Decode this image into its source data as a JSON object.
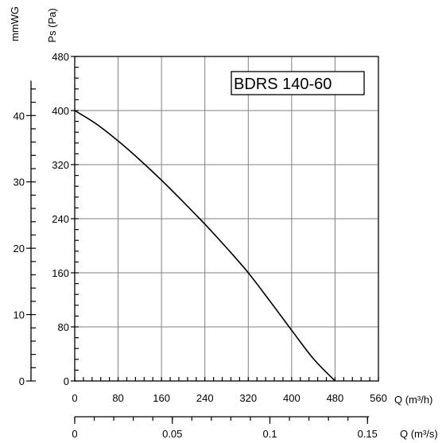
{
  "chart_data": {
    "type": "line",
    "title": "BDRS 140-60",
    "xlabel": "Q (m³/h)",
    "xlabel_secondary": "Q (m³/s)",
    "ylabel": "Ps (Pa)",
    "ylabel_secondary": "mmWG",
    "xlim": [
      0,
      560
    ],
    "ylim": [
      0,
      480
    ],
    "x_ticks": [
      "0",
      "80",
      "160",
      "240",
      "320",
      "400",
      "480",
      "560"
    ],
    "y_ticks": [
      "0",
      "80",
      "160",
      "240",
      "320",
      "400",
      "480"
    ],
    "x2_lim": [
      0,
      0.1556
    ],
    "x2_ticks": [
      "0",
      "0.05",
      "0.1",
      "0.15"
    ],
    "y2_lim": [
      0,
      48.9
    ],
    "y2_ticks": [
      "0",
      "10",
      "20",
      "30",
      "40"
    ],
    "grid": true,
    "series": [
      {
        "x": [
          0,
          40,
          80,
          120,
          160,
          200,
          240,
          280,
          320,
          360,
          400,
          440,
          480
        ],
        "y": [
          400,
          380,
          355,
          327,
          297,
          265,
          232,
          197,
          160,
          118,
          75,
          33,
          0
        ]
      }
    ]
  },
  "colors": {
    "line": "#000000",
    "grid": "#808080",
    "axis": "#000000",
    "background": "#ffffff"
  }
}
